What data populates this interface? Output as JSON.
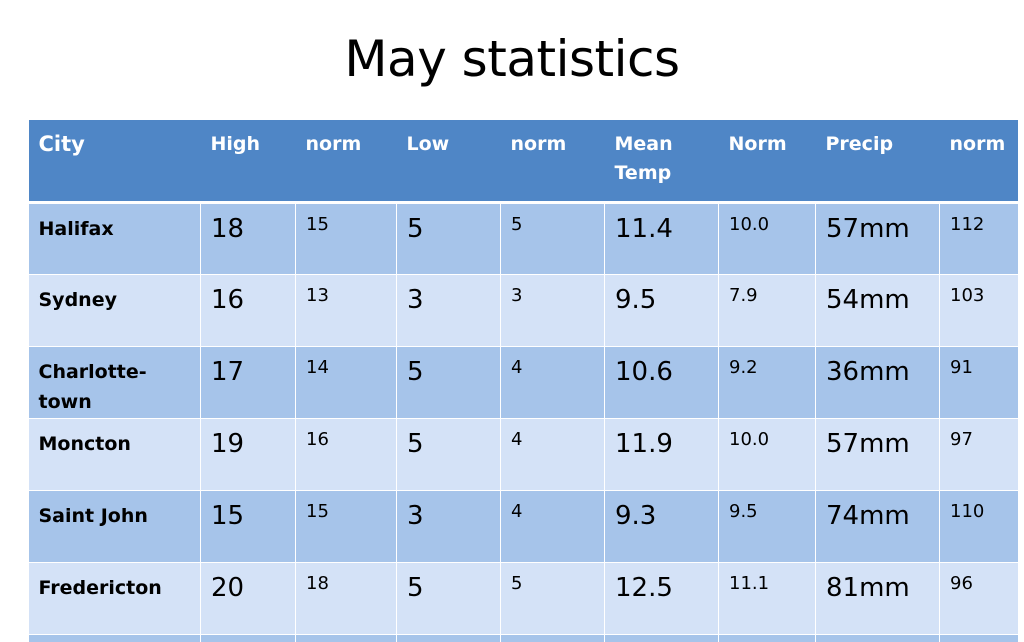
{
  "title": "May statistics",
  "table": {
    "headers": [
      "City",
      "High",
      "norm",
      "Low",
      "norm",
      "Mean Temp",
      "Norm",
      "Precip",
      "norm"
    ],
    "rows": [
      {
        "city": "Halifax",
        "high": "18",
        "high_norm": "15",
        "low": "5",
        "low_norm": "5",
        "mean": "11.4",
        "mean_norm": "10.0",
        "precip": "57mm",
        "precip_norm": "112"
      },
      {
        "city": "Sydney",
        "high": "16",
        "high_norm": "13",
        "low": "3",
        "low_norm": "3",
        "mean": "9.5",
        "mean_norm": "7.9",
        "precip": "54mm",
        "precip_norm": "103"
      },
      {
        "city": "Charlotte-town",
        "high": "17",
        "high_norm": "14",
        "low": "5",
        "low_norm": "4",
        "mean": "10.6",
        "mean_norm": "9.2",
        "precip": "36mm",
        "precip_norm": "91"
      },
      {
        "city": "Moncton",
        "high": "19",
        "high_norm": "16",
        "low": "5",
        "low_norm": "4",
        "mean": "11.9",
        "mean_norm": "10.0",
        "precip": "57mm",
        "precip_norm": "97"
      },
      {
        "city": "Saint John",
        "high": "15",
        "high_norm": "15",
        "low": "3",
        "low_norm": "4",
        "mean": "9.3",
        "mean_norm": "9.5",
        "precip": "74mm",
        "precip_norm": "110"
      },
      {
        "city": "Fredericton",
        "high": "20",
        "high_norm": "18",
        "low": "5",
        "low_norm": "5",
        "mean": "12.5",
        "mean_norm": "11.1",
        "precip": "81mm",
        "precip_norm": "96"
      }
    ]
  },
  "colors": {
    "header": "#4f86c6",
    "row_dark": "#a6c4ea",
    "row_light": "#d4e2f7"
  }
}
